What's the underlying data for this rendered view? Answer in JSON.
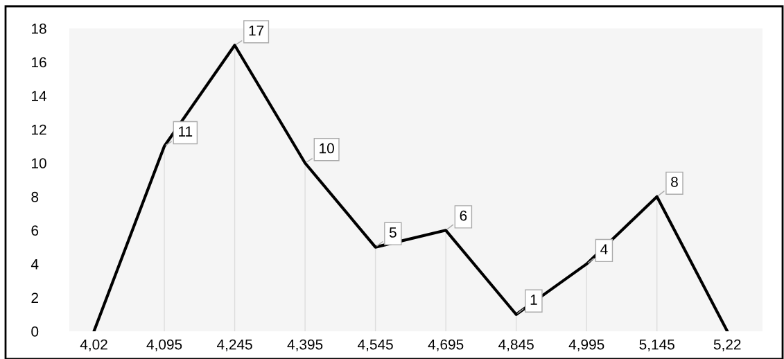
{
  "chart_data": {
    "type": "line",
    "categories": [
      "4,02",
      "4,095",
      "4,245",
      "4,395",
      "4,545",
      "4,695",
      "4,845",
      "4,995",
      "5,145",
      "5,22"
    ],
    "series": [
      {
        "color": "#000000",
        "values": [
          0,
          11,
          17,
          10,
          5,
          6,
          1,
          4,
          8,
          0
        ],
        "value_labels": [
          null,
          "11",
          "17",
          "10",
          "5",
          "6",
          "1",
          "4",
          "8",
          null
        ]
      }
    ],
    "ylim": [
      0,
      18
    ],
    "yticks": [
      0,
      2,
      4,
      6,
      8,
      10,
      12,
      14,
      16,
      18
    ],
    "grid": "x",
    "marker": "none",
    "line_style": "solid"
  }
}
